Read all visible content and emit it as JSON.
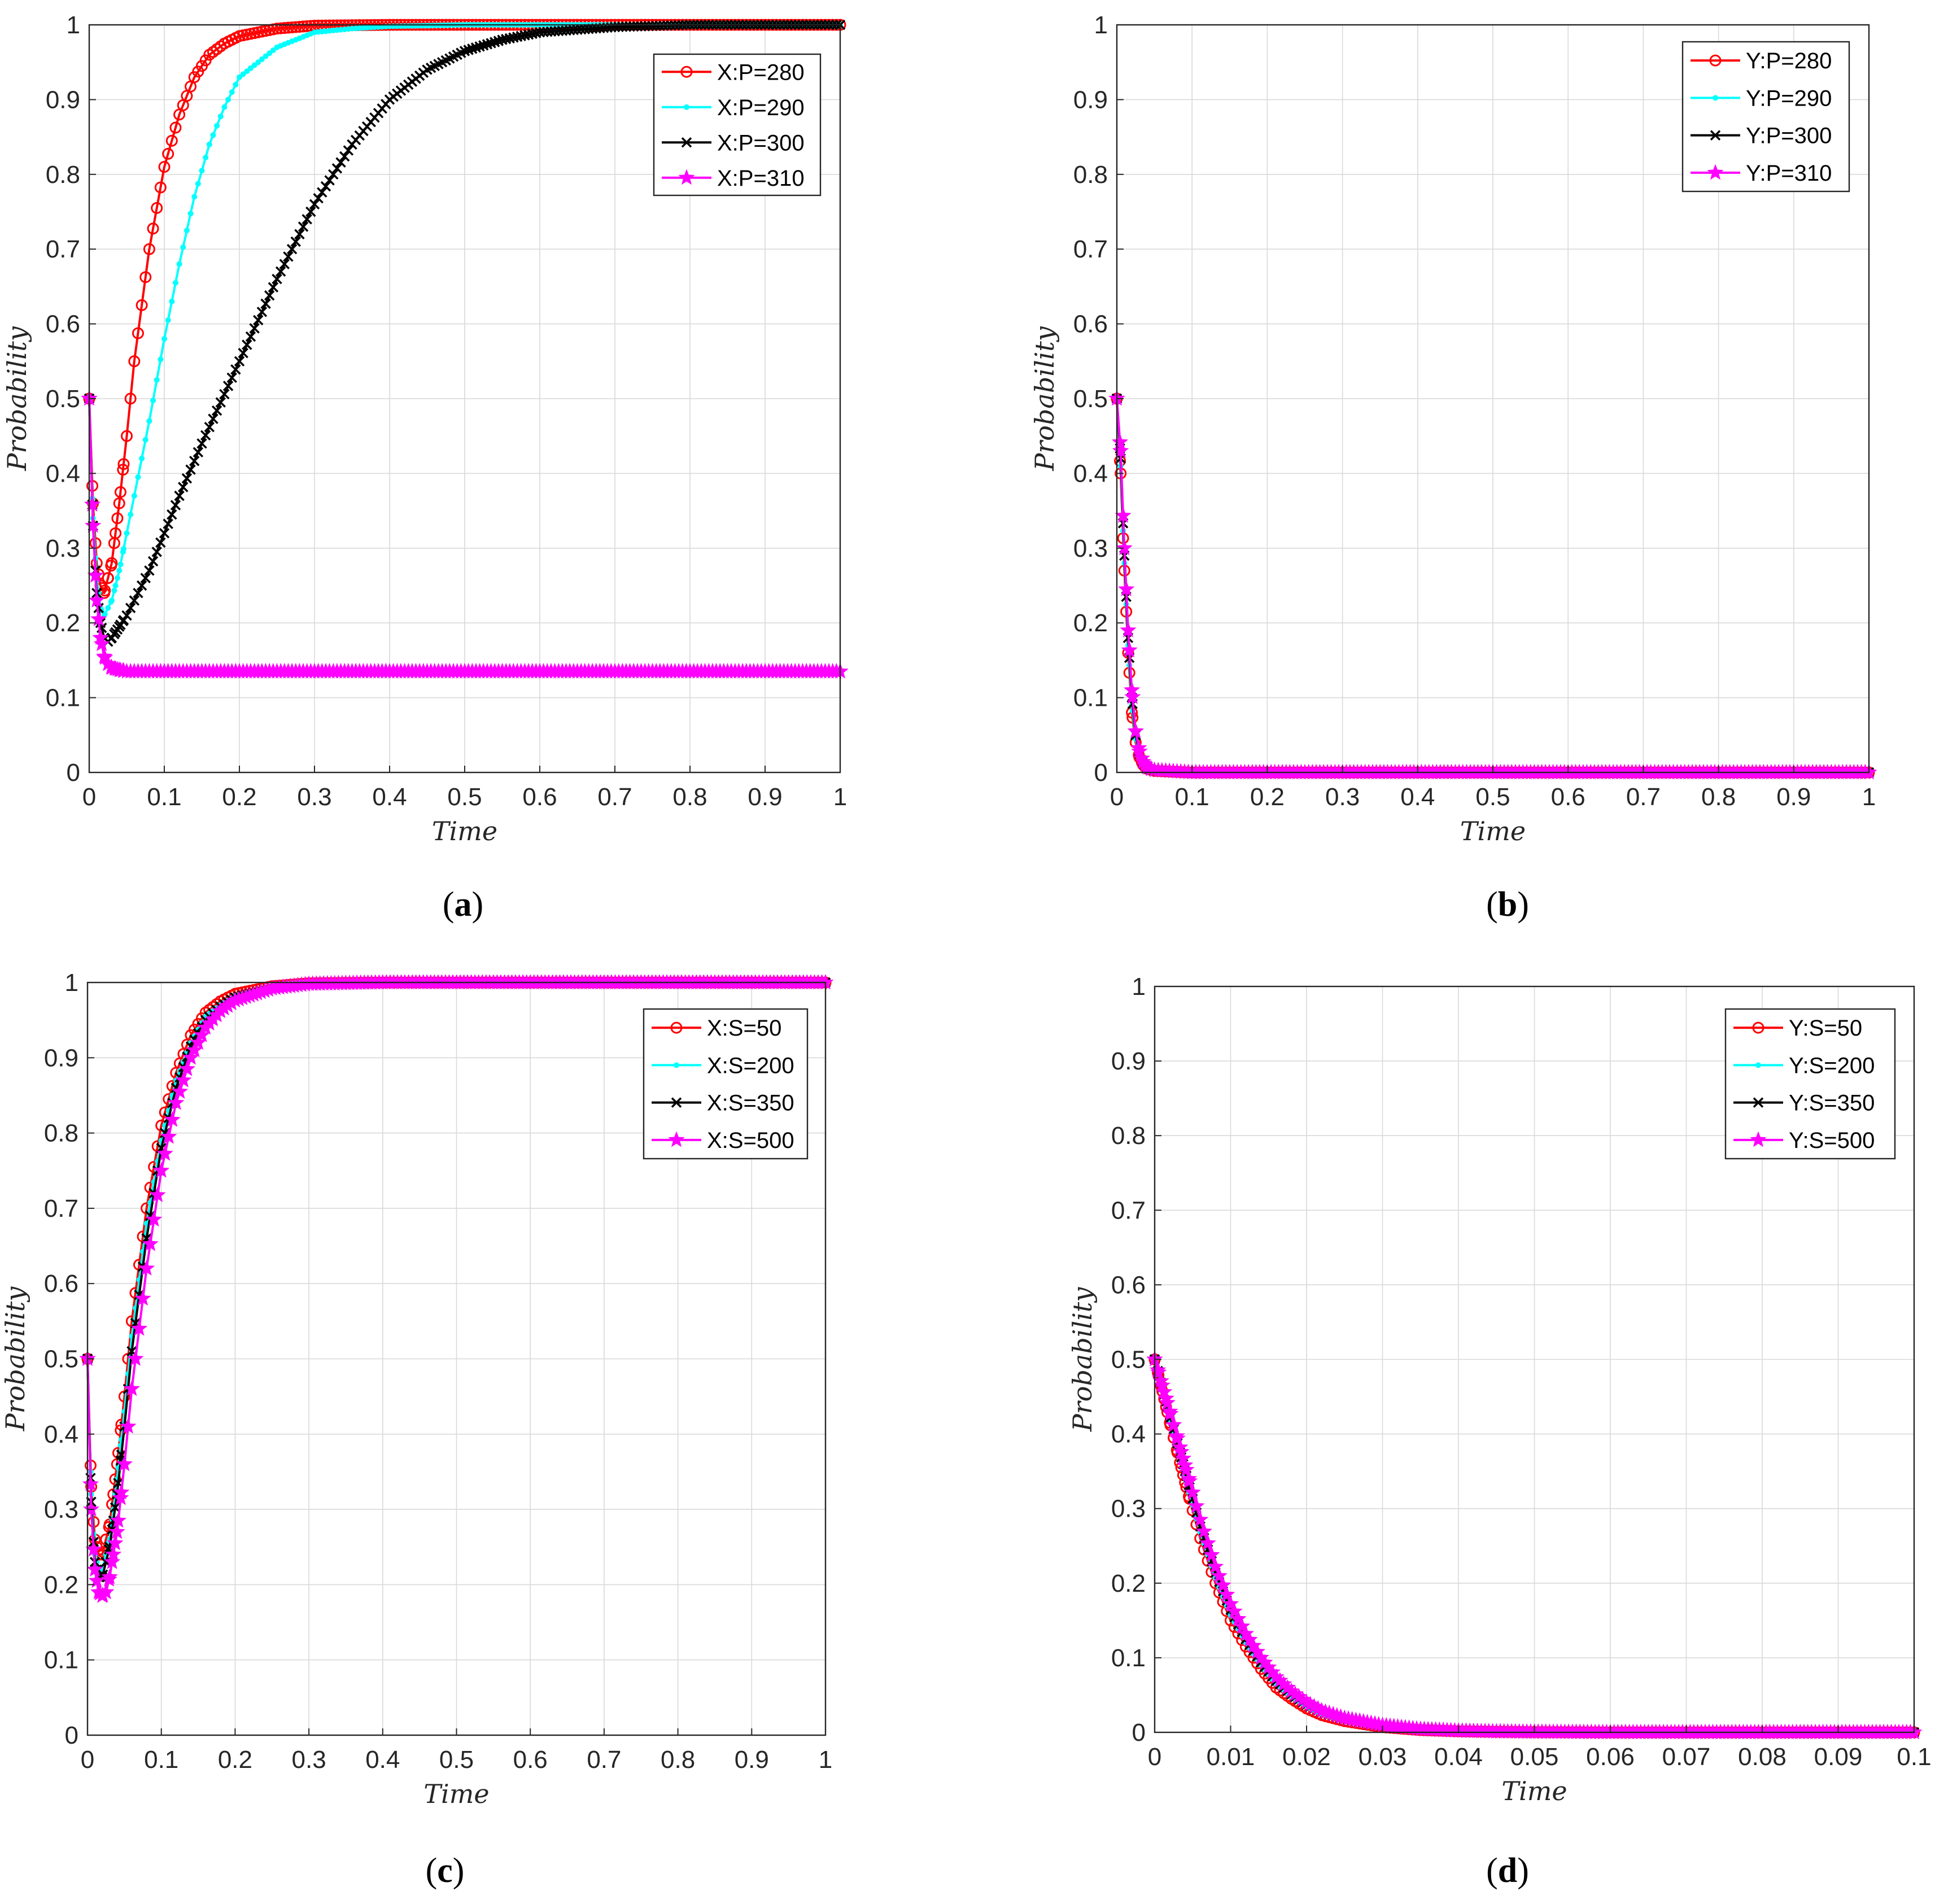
{
  "colors": {
    "red": "#ff0000",
    "cyan": "#00ffff",
    "black": "#000000",
    "magenta": "#ff00ff",
    "frame": "#262626",
    "grid": "#d9d9d9"
  },
  "chart_data": [
    {
      "panel_label": "(a)",
      "type": "line",
      "xlabel": "Time",
      "ylabel": "Probability",
      "xlim": [
        0,
        1
      ],
      "ylim": [
        0,
        1
      ],
      "xticks": [
        0,
        0.1,
        0.2,
        0.3,
        0.4,
        0.5,
        0.6,
        0.7,
        0.8,
        0.9,
        1
      ],
      "xtick_labels": [
        "0",
        "0.1",
        "0.2",
        "0.3",
        "0.4",
        "0.5",
        "0.6",
        "0.7",
        "0.8",
        "0.9",
        "1"
      ],
      "yticks": [
        0,
        0.1,
        0.2,
        0.3,
        0.4,
        0.5,
        0.6,
        0.7,
        0.8,
        0.9,
        1
      ],
      "ytick_labels": [
        "0",
        "0.1",
        "0.2",
        "0.3",
        "0.4",
        "0.5",
        "0.6",
        "0.7",
        "0.8",
        "0.9",
        "1"
      ],
      "grid": true,
      "legend_position": "top-right",
      "series": [
        {
          "name": "X:P=280",
          "color": "red",
          "marker": "circle",
          "x": [
            0,
            0.005,
            0.01,
            0.015,
            0.02,
            0.03,
            0.04,
            0.05,
            0.06,
            0.08,
            0.1,
            0.12,
            0.14,
            0.16,
            0.18,
            0.2,
            0.25,
            0.3,
            0.4,
            0.6,
            0.8,
            1.0
          ],
          "y": [
            0.5,
            0.36,
            0.28,
            0.25,
            0.24,
            0.28,
            0.36,
            0.45,
            0.55,
            0.7,
            0.81,
            0.88,
            0.93,
            0.96,
            0.975,
            0.985,
            0.995,
            0.999,
            1,
            1,
            1,
            1
          ]
        },
        {
          "name": "X:P=290",
          "color": "cyan",
          "marker": "dot",
          "x": [
            0,
            0.005,
            0.01,
            0.015,
            0.02,
            0.03,
            0.04,
            0.05,
            0.06,
            0.08,
            0.1,
            0.12,
            0.14,
            0.16,
            0.18,
            0.2,
            0.25,
            0.3,
            0.35,
            0.4,
            0.5,
            0.6,
            0.8,
            1.0
          ],
          "y": [
            0.5,
            0.34,
            0.26,
            0.22,
            0.21,
            0.23,
            0.27,
            0.32,
            0.37,
            0.47,
            0.58,
            0.68,
            0.77,
            0.84,
            0.89,
            0.93,
            0.97,
            0.99,
            0.995,
            0.998,
            1,
            1,
            1,
            1
          ]
        },
        {
          "name": "X:P=300",
          "color": "black",
          "marker": "x",
          "x": [
            0,
            0.005,
            0.01,
            0.015,
            0.02,
            0.025,
            0.03,
            0.04,
            0.05,
            0.06,
            0.08,
            0.1,
            0.12,
            0.15,
            0.2,
            0.25,
            0.3,
            0.35,
            0.4,
            0.45,
            0.5,
            0.55,
            0.6,
            0.7,
            0.8,
            0.9,
            1.0
          ],
          "y": [
            0.5,
            0.33,
            0.24,
            0.2,
            0.18,
            0.175,
            0.18,
            0.195,
            0.21,
            0.23,
            0.27,
            0.32,
            0.37,
            0.44,
            0.55,
            0.66,
            0.76,
            0.84,
            0.9,
            0.94,
            0.965,
            0.98,
            0.99,
            0.997,
            1,
            1,
            1
          ]
        },
        {
          "name": "X:P=310",
          "color": "magenta",
          "marker": "star",
          "x": [
            0,
            0.005,
            0.01,
            0.015,
            0.02,
            0.025,
            0.03,
            0.04,
            0.05,
            0.1,
            0.2,
            0.4,
            0.6,
            0.8,
            1.0
          ],
          "y": [
            0.5,
            0.33,
            0.23,
            0.18,
            0.155,
            0.145,
            0.14,
            0.137,
            0.135,
            0.135,
            0.135,
            0.135,
            0.135,
            0.135,
            0.135
          ]
        }
      ]
    },
    {
      "panel_label": "(b)",
      "type": "line",
      "xlabel": "Time",
      "ylabel": "Probability",
      "xlim": [
        0,
        1
      ],
      "ylim": [
        0,
        1
      ],
      "xticks": [
        0,
        0.1,
        0.2,
        0.3,
        0.4,
        0.5,
        0.6,
        0.7,
        0.8,
        0.9,
        1
      ],
      "xtick_labels": [
        "0",
        "0.1",
        "0.2",
        "0.3",
        "0.4",
        "0.5",
        "0.6",
        "0.7",
        "0.8",
        "0.9",
        "1"
      ],
      "yticks": [
        0,
        0.1,
        0.2,
        0.3,
        0.4,
        0.5,
        0.6,
        0.7,
        0.8,
        0.9,
        1
      ],
      "ytick_labels": [
        "0",
        "0.1",
        "0.2",
        "0.3",
        "0.4",
        "0.5",
        "0.6",
        "0.7",
        "0.8",
        "0.9",
        "1"
      ],
      "grid": true,
      "legend_position": "top-right",
      "series": [
        {
          "name": "Y:P=280",
          "color": "red",
          "marker": "circle",
          "x": [
            0,
            0.005,
            0.01,
            0.015,
            0.02,
            0.025,
            0.03,
            0.035,
            0.04,
            0.05,
            0.1,
            0.2,
            0.4,
            0.6,
            0.8,
            1.0
          ],
          "y": [
            0.5,
            0.4,
            0.27,
            0.16,
            0.08,
            0.04,
            0.02,
            0.01,
            0.005,
            0.002,
            0,
            0,
            0,
            0,
            0,
            0
          ]
        },
        {
          "name": "Y:P=290",
          "color": "cyan",
          "marker": "dot",
          "x": [
            0,
            0.005,
            0.01,
            0.015,
            0.02,
            0.025,
            0.03,
            0.035,
            0.04,
            0.05,
            0.1,
            0.2,
            0.4,
            0.6,
            0.8,
            1.0
          ],
          "y": [
            0.5,
            0.41,
            0.28,
            0.17,
            0.09,
            0.045,
            0.022,
            0.011,
            0.005,
            0.002,
            0,
            0,
            0,
            0,
            0,
            0
          ]
        },
        {
          "name": "Y:P=300",
          "color": "black",
          "marker": "x",
          "x": [
            0,
            0.005,
            0.01,
            0.015,
            0.02,
            0.025,
            0.03,
            0.035,
            0.04,
            0.05,
            0.1,
            0.2,
            0.4,
            0.6,
            0.8,
            1.0
          ],
          "y": [
            0.5,
            0.42,
            0.29,
            0.18,
            0.1,
            0.05,
            0.025,
            0.012,
            0.006,
            0.002,
            0,
            0,
            0,
            0,
            0,
            0
          ]
        },
        {
          "name": "Y:P=310",
          "color": "magenta",
          "marker": "star",
          "x": [
            0,
            0.005,
            0.01,
            0.015,
            0.02,
            0.025,
            0.03,
            0.035,
            0.04,
            0.05,
            0.1,
            0.2,
            0.4,
            0.6,
            0.8,
            1.0
          ],
          "y": [
            0.5,
            0.43,
            0.3,
            0.19,
            0.11,
            0.055,
            0.028,
            0.014,
            0.007,
            0.003,
            0,
            0,
            0,
            0,
            0,
            0
          ]
        }
      ]
    },
    {
      "panel_label": "(c)",
      "type": "line",
      "xlabel": "Time",
      "ylabel": "Probability",
      "xlim": [
        0,
        1
      ],
      "ylim": [
        0,
        1
      ],
      "xticks": [
        0,
        0.1,
        0.2,
        0.3,
        0.4,
        0.5,
        0.6,
        0.7,
        0.8,
        0.9,
        1
      ],
      "xtick_labels": [
        "0",
        "0.1",
        "0.2",
        "0.3",
        "0.4",
        "0.5",
        "0.6",
        "0.7",
        "0.8",
        "0.9",
        "1"
      ],
      "yticks": [
        0,
        0.1,
        0.2,
        0.3,
        0.4,
        0.5,
        0.6,
        0.7,
        0.8,
        0.9,
        1
      ],
      "ytick_labels": [
        "0",
        "0.1",
        "0.2",
        "0.3",
        "0.4",
        "0.5",
        "0.6",
        "0.7",
        "0.8",
        "0.9",
        "1"
      ],
      "grid": true,
      "legend_position": "top-right",
      "series": [
        {
          "name": "X:S=50",
          "color": "red",
          "marker": "circle",
          "x": [
            0,
            0.005,
            0.01,
            0.015,
            0.02,
            0.03,
            0.04,
            0.05,
            0.06,
            0.08,
            0.1,
            0.12,
            0.14,
            0.16,
            0.18,
            0.2,
            0.25,
            0.3,
            0.4,
            0.6,
            0.8,
            1.0
          ],
          "y": [
            0.5,
            0.33,
            0.26,
            0.24,
            0.24,
            0.28,
            0.36,
            0.45,
            0.55,
            0.7,
            0.81,
            0.88,
            0.93,
            0.96,
            0.975,
            0.985,
            0.995,
            0.999,
            1,
            1,
            1,
            1
          ]
        },
        {
          "name": "X:S=200",
          "color": "cyan",
          "marker": "dot",
          "x": [
            0,
            0.005,
            0.01,
            0.015,
            0.02,
            0.03,
            0.04,
            0.05,
            0.06,
            0.08,
            0.1,
            0.12,
            0.14,
            0.16,
            0.18,
            0.2,
            0.25,
            0.3,
            0.4,
            0.6,
            0.8,
            1.0
          ],
          "y": [
            0.5,
            0.32,
            0.24,
            0.22,
            0.22,
            0.26,
            0.34,
            0.43,
            0.53,
            0.68,
            0.79,
            0.87,
            0.92,
            0.955,
            0.97,
            0.982,
            0.994,
            0.999,
            1,
            1,
            1,
            1
          ]
        },
        {
          "name": "X:S=350",
          "color": "black",
          "marker": "x",
          "x": [
            0,
            0.005,
            0.01,
            0.015,
            0.02,
            0.03,
            0.04,
            0.05,
            0.06,
            0.08,
            0.1,
            0.12,
            0.14,
            0.16,
            0.18,
            0.2,
            0.25,
            0.3,
            0.4,
            0.6,
            0.8,
            1.0
          ],
          "y": [
            0.5,
            0.31,
            0.23,
            0.21,
            0.21,
            0.25,
            0.32,
            0.41,
            0.51,
            0.66,
            0.78,
            0.86,
            0.915,
            0.95,
            0.968,
            0.98,
            0.993,
            0.998,
            1,
            1,
            1,
            1
          ]
        },
        {
          "name": "X:S=500",
          "color": "magenta",
          "marker": "star",
          "x": [
            0,
            0.005,
            0.01,
            0.015,
            0.02,
            0.025,
            0.03,
            0.04,
            0.05,
            0.06,
            0.08,
            0.1,
            0.12,
            0.14,
            0.16,
            0.18,
            0.2,
            0.25,
            0.3,
            0.4,
            0.6,
            0.8,
            1.0
          ],
          "y": [
            0.5,
            0.3,
            0.22,
            0.19,
            0.185,
            0.19,
            0.21,
            0.27,
            0.36,
            0.46,
            0.62,
            0.75,
            0.84,
            0.9,
            0.94,
            0.962,
            0.976,
            0.992,
            0.998,
            1,
            1,
            1,
            1
          ]
        }
      ]
    },
    {
      "panel_label": "(d)",
      "type": "line",
      "xlabel": "Time",
      "ylabel": "Probability",
      "xlim": [
        0,
        0.1
      ],
      "ylim": [
        0,
        1
      ],
      "xticks": [
        0,
        0.01,
        0.02,
        0.03,
        0.04,
        0.05,
        0.06,
        0.07,
        0.08,
        0.09,
        0.1
      ],
      "xtick_labels": [
        "0",
        "0.01",
        "0.02",
        "0.03",
        "0.04",
        "0.05",
        "0.06",
        "0.07",
        "0.08",
        "0.09",
        "0.1"
      ],
      "yticks": [
        0,
        0.1,
        0.2,
        0.3,
        0.4,
        0.5,
        0.6,
        0.7,
        0.8,
        0.9,
        1
      ],
      "ytick_labels": [
        "0",
        "0.1",
        "0.2",
        "0.3",
        "0.4",
        "0.5",
        "0.6",
        "0.7",
        "0.8",
        "0.9",
        "1"
      ],
      "grid": true,
      "legend_position": "top-right",
      "series": [
        {
          "name": "Y:S=50",
          "color": "red",
          "marker": "circle",
          "x": [
            0,
            0.002,
            0.004,
            0.006,
            0.008,
            0.01,
            0.012,
            0.014,
            0.016,
            0.018,
            0.02,
            0.022,
            0.025,
            0.03,
            0.035,
            0.04,
            0.045,
            0.05,
            0.06,
            0.07,
            0.08,
            0.09,
            0.1
          ],
          "y": [
            0.5,
            0.415,
            0.335,
            0.26,
            0.2,
            0.15,
            0.115,
            0.085,
            0.06,
            0.045,
            0.032,
            0.023,
            0.015,
            0.007,
            0.003,
            0.0015,
            0.0008,
            0.0004,
            0,
            0,
            0,
            0,
            0
          ]
        },
        {
          "name": "Y:S=200",
          "color": "cyan",
          "marker": "dot",
          "x": [
            0,
            0.002,
            0.004,
            0.006,
            0.008,
            0.01,
            0.012,
            0.014,
            0.016,
            0.018,
            0.02,
            0.022,
            0.025,
            0.03,
            0.035,
            0.04,
            0.045,
            0.05,
            0.06,
            0.07,
            0.08,
            0.09,
            0.1
          ],
          "y": [
            0.5,
            0.42,
            0.342,
            0.268,
            0.207,
            0.157,
            0.12,
            0.09,
            0.065,
            0.048,
            0.035,
            0.025,
            0.016,
            0.008,
            0.0035,
            0.0017,
            0.0009,
            0.0004,
            0,
            0,
            0,
            0,
            0
          ]
        },
        {
          "name": "Y:S=350",
          "color": "black",
          "marker": "x",
          "x": [
            0,
            0.002,
            0.004,
            0.006,
            0.008,
            0.01,
            0.012,
            0.014,
            0.016,
            0.018,
            0.02,
            0.022,
            0.025,
            0.03,
            0.035,
            0.04,
            0.045,
            0.05,
            0.06,
            0.07,
            0.08,
            0.09,
            0.1
          ],
          "y": [
            0.5,
            0.425,
            0.35,
            0.276,
            0.214,
            0.164,
            0.125,
            0.094,
            0.069,
            0.051,
            0.037,
            0.027,
            0.017,
            0.0085,
            0.0038,
            0.0019,
            0.001,
            0.0005,
            0,
            0,
            0,
            0,
            0
          ]
        },
        {
          "name": "Y:S=500",
          "color": "magenta",
          "marker": "star",
          "x": [
            0,
            0.002,
            0.004,
            0.006,
            0.008,
            0.01,
            0.012,
            0.014,
            0.016,
            0.018,
            0.02,
            0.022,
            0.025,
            0.03,
            0.035,
            0.04,
            0.045,
            0.05,
            0.06,
            0.07,
            0.08,
            0.09,
            0.1
          ],
          "y": [
            0.5,
            0.43,
            0.358,
            0.285,
            0.222,
            0.172,
            0.132,
            0.1,
            0.074,
            0.055,
            0.04,
            0.029,
            0.019,
            0.0095,
            0.0042,
            0.002,
            0.001,
            0.0005,
            0,
            0,
            0,
            0,
            0
          ]
        }
      ]
    }
  ]
}
